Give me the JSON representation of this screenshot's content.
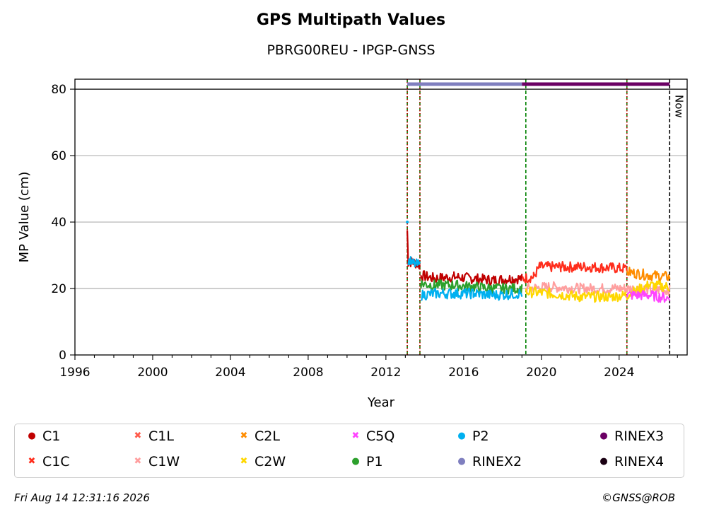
{
  "chart_data": {
    "type": "scatter",
    "title": "GPS Multipath Values",
    "subtitle": "PBRG00REU - IPGP-GNSS",
    "xlabel": "Year",
    "ylabel": "MP Value (cm)",
    "xlim": [
      1996,
      2027.5
    ],
    "ylim": [
      0,
      83
    ],
    "x_ticks": [
      "1996",
      "2000",
      "2004",
      "2008",
      "2012",
      "2016",
      "2020",
      "2024"
    ],
    "y_ticks": [
      "0",
      "20",
      "40",
      "60",
      "80"
    ],
    "grid": "horizontal",
    "legend_position": "bottom",
    "now_label": "Now",
    "now_x": 2026.6,
    "reference_line_y": 80,
    "events": [
      {
        "x": 2013.1,
        "color": "#008000",
        "style": "dashed"
      },
      {
        "x": 2013.1,
        "color": "#cc0000",
        "style": "dotted"
      },
      {
        "x": 2013.75,
        "color": "#008000",
        "style": "dashed"
      },
      {
        "x": 2013.75,
        "color": "#cc0000",
        "style": "dotted"
      },
      {
        "x": 2019.2,
        "color": "#008000",
        "style": "dashed"
      },
      {
        "x": 2024.4,
        "color": "#008000",
        "style": "dashed"
      },
      {
        "x": 2024.4,
        "color": "#cc0000",
        "style": "dotted"
      }
    ],
    "rinex_bars": [
      {
        "name": "RINEX2",
        "x_start": 2013.1,
        "x_end": 2019.0,
        "y": 81.5
      },
      {
        "name": "RINEX3",
        "x_start": 2019.0,
        "x_end": 2026.6,
        "y": 81.5
      }
    ],
    "series": [
      {
        "name": "C1",
        "marker": "dot",
        "color": "#c00000",
        "segments": [
          {
            "points": [
              [
                2013.1,
                37.5
              ],
              [
                2013.15,
                28.0
              ],
              [
                2013.4,
                28.0
              ],
              [
                2013.75,
                27.0
              ]
            ]
          },
          {
            "points": [
              [
                2013.8,
                24.0
              ],
              [
                2014.5,
                23.0
              ],
              [
                2015.5,
                23.5
              ],
              [
                2016.5,
                23.0
              ],
              [
                2017.5,
                22.5
              ],
              [
                2018.5,
                23.0
              ],
              [
                2019.0,
                23.0
              ]
            ]
          }
        ]
      },
      {
        "name": "C1C",
        "marker": "x",
        "color": "#ff2d1c",
        "segments": [
          {
            "points": [
              [
                2019.0,
                23.0
              ],
              [
                2019.6,
                23.5
              ],
              [
                2019.9,
                26.5
              ],
              [
                2021.0,
                26.5
              ],
              [
                2022.5,
                26.5
              ],
              [
                2024.4,
                26.0
              ]
            ]
          }
        ]
      },
      {
        "name": "C1L",
        "marker": "x",
        "color": "#ff5a4a",
        "segments": []
      },
      {
        "name": "C1W",
        "marker": "x",
        "color": "#ff9e9e",
        "segments": [
          {
            "points": [
              [
                2019.2,
                20.0
              ],
              [
                2020.5,
                20.5
              ],
              [
                2022.0,
                20.0
              ],
              [
                2024.4,
                20.0
              ],
              [
                2026.6,
                19.5
              ]
            ]
          }
        ]
      },
      {
        "name": "C2L",
        "marker": "x",
        "color": "#ff8c00",
        "segments": [
          {
            "points": [
              [
                2024.4,
                25.0
              ],
              [
                2025.5,
                24.0
              ],
              [
                2026.6,
                23.5
              ]
            ]
          }
        ]
      },
      {
        "name": "C2W",
        "marker": "x",
        "color": "#ffd700",
        "segments": [
          {
            "points": [
              [
                2019.2,
                19.0
              ],
              [
                2020.5,
                18.5
              ],
              [
                2022.0,
                17.5
              ],
              [
                2023.5,
                17.5
              ],
              [
                2024.4,
                18.0
              ],
              [
                2025.5,
                21.0
              ],
              [
                2026.6,
                20.5
              ]
            ]
          }
        ]
      },
      {
        "name": "C5Q",
        "marker": "x",
        "color": "#ff44ff",
        "segments": [
          {
            "points": [
              [
                2024.4,
                18.0
              ],
              [
                2025.5,
                18.0
              ],
              [
                2026.6,
                17.0
              ]
            ]
          }
        ]
      },
      {
        "name": "P1",
        "marker": "dot",
        "color": "#2ca02c",
        "segments": [
          {
            "points": [
              [
                2013.8,
                21.5
              ],
              [
                2014.5,
                21.0
              ],
              [
                2015.5,
                21.0
              ],
              [
                2016.5,
                20.5
              ],
              [
                2017.5,
                20.0
              ],
              [
                2019.0,
                20.0
              ]
            ]
          }
        ]
      },
      {
        "name": "P2",
        "marker": "dot",
        "color": "#00b0f0",
        "segments": [
          {
            "points": [
              [
                2013.1,
                40.0
              ]
            ]
          },
          {
            "points": [
              [
                2013.15,
                28.5
              ],
              [
                2013.4,
                27.5
              ],
              [
                2013.75,
                27.0
              ]
            ]
          },
          {
            "points": [
              [
                2013.8,
                18.0
              ],
              [
                2014.5,
                18.5
              ],
              [
                2015.5,
                18.5
              ],
              [
                2016.5,
                18.5
              ],
              [
                2017.5,
                18.0
              ],
              [
                2019.0,
                18.5
              ]
            ]
          }
        ]
      },
      {
        "name": "RINEX2",
        "marker": "dot",
        "color": "#7f7fbf",
        "segments": []
      },
      {
        "name": "RINEX3",
        "marker": "dot",
        "color": "#6b0064",
        "segments": []
      },
      {
        "name": "RINEX4",
        "marker": "dot",
        "color": "#1a0012",
        "segments": []
      }
    ]
  },
  "legend": {
    "items": [
      {
        "label": "C1",
        "color": "#c00000",
        "marker": "●"
      },
      {
        "label": "C1C",
        "color": "#ff2d1c",
        "marker": "✖"
      },
      {
        "label": "C1L",
        "color": "#ff5a4a",
        "marker": "✖"
      },
      {
        "label": "C1W",
        "color": "#ff9e9e",
        "marker": "✖"
      },
      {
        "label": "C2L",
        "color": "#ff8c00",
        "marker": "✖"
      },
      {
        "label": "C2W",
        "color": "#ffd700",
        "marker": "✖"
      },
      {
        "label": "C5Q",
        "color": "#ff44ff",
        "marker": "✖"
      },
      {
        "label": "P1",
        "color": "#2ca02c",
        "marker": "●"
      },
      {
        "label": "P2",
        "color": "#00b0f0",
        "marker": "●"
      },
      {
        "label": "RINEX2",
        "color": "#7f7fbf",
        "marker": "●"
      },
      {
        "label": "RINEX3",
        "color": "#6b0064",
        "marker": "●"
      },
      {
        "label": "RINEX4",
        "color": "#1a0012",
        "marker": "●"
      }
    ]
  },
  "footer": {
    "timestamp": "Fri Aug 14 12:31:16 2026",
    "credit": "©GNSS@ROB"
  }
}
